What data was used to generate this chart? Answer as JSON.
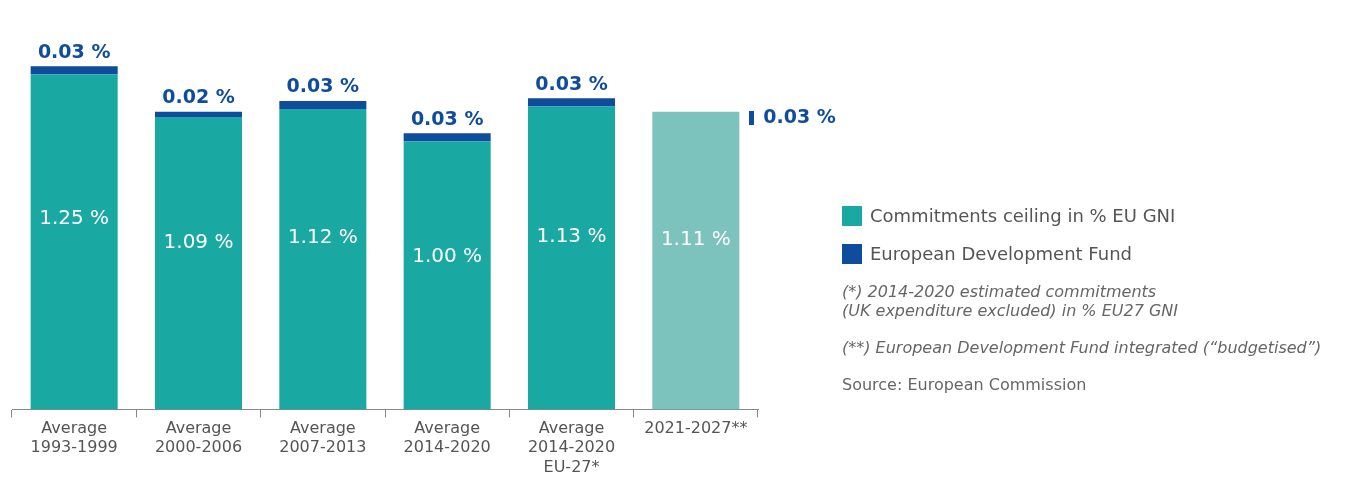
{
  "chart_data": {
    "type": "bar",
    "stacked": true,
    "categories": [
      "Average\n1993-1999",
      "Average\n2000-2006",
      "Average\n2007-2013",
      "Average\n2014-2020",
      "Average\n2014-2020\nEU-27*",
      "2021-2027**"
    ],
    "series": [
      {
        "name": "Commitments ceiling in % EU GNI",
        "colors": [
          "#1aa8a2",
          "#1aa8a2",
          "#1aa8a2",
          "#1aa8a2",
          "#1aa8a2",
          "#7cc2bd"
        ],
        "values": [
          1.25,
          1.09,
          1.12,
          1.0,
          1.13,
          1.11
        ],
        "value_labels": [
          "1.25 %",
          "1.09 %",
          "1.12 %",
          "1.00 %",
          "1.13 %",
          "1.11 %"
        ]
      },
      {
        "name": "European Development Fund",
        "color": "#0f4c9d",
        "values": [
          0.03,
          0.02,
          0.03,
          0.03,
          0.03,
          null
        ],
        "value_labels": [
          "0.03 %",
          "0.02 %",
          "0.03 %",
          "0.03 %",
          "0.03 %",
          null
        ]
      }
    ],
    "legend": "right",
    "annotations": [
      "0.03 %",
      "(*) 2014-2020 estimated commitments\n(UK expenditure excluded) in % EU27 GNI",
      "(**) European Development Fund integrated (“budgetised”)",
      "Source: European Commission"
    ]
  }
}
